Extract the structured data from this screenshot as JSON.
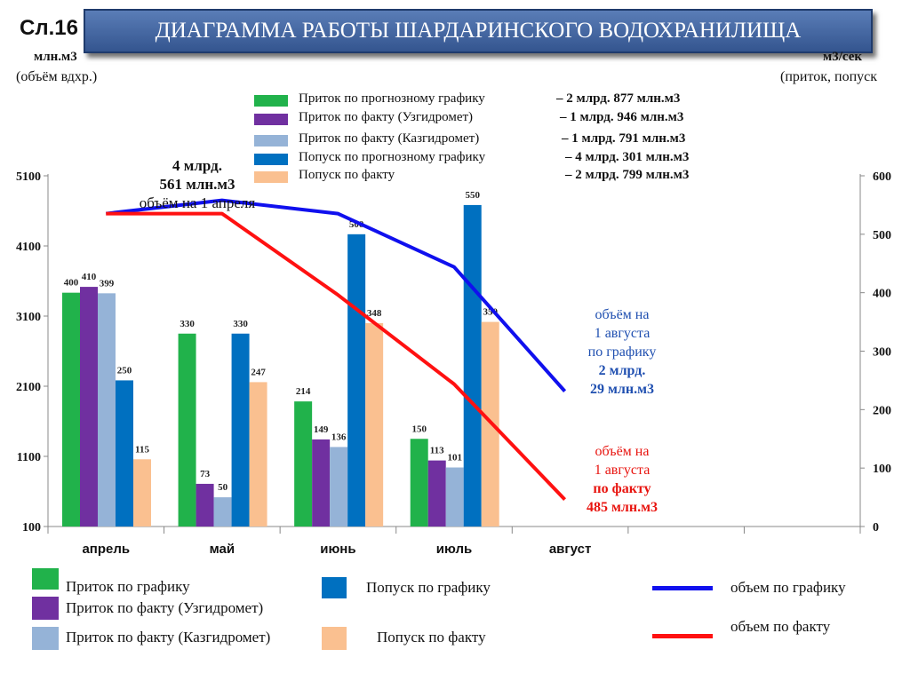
{
  "slide_number": "Сл.16",
  "title": "ДИАГРАММА  РАБОТЫ  ШАРДАРИНСКОГО  ВОДОХРАНИЛИЩА",
  "left_axis_unit": "млн.м3",
  "left_axis_caption": "(объём вдхр.)",
  "right_axis_unit": "м3/сек",
  "right_axis_caption": "(приток, попуск",
  "top_legend": [
    {
      "label": "Приток по прогнозному графику",
      "value": "–  2 млрд.  877 млн.м3",
      "color": "#21b24b"
    },
    {
      "label": "Приток по факту  (Узгидромет)",
      "value": "–  1 млрд. 946 млн.м3",
      "color": "#7030a0"
    },
    {
      "label": "Приток по факту  (Казгидромет)",
      "value": "–  1 млрд. 791 млн.м3",
      "color": "#95b3d7"
    },
    {
      "label": "Попуск по прогнозному  графику",
      "value": "–  4 млрд.  301 млн.м3",
      "color": "#0070c0"
    },
    {
      "label": "Попуск по факту",
      "value": "–  2 млрд.  799 млн.м3",
      "color": "#fac090"
    }
  ],
  "annotations": {
    "april_volume": {
      "line1": "4 млрд.",
      "line2": "561 млн.м3",
      "line3": "объём на 1 апреля"
    },
    "plan_volume": {
      "line1": "объём на",
      "line2": "1 августа",
      "line3": "по графику",
      "line4": "2 млрд.",
      "line5": "29 млн.м3"
    },
    "fact_volume": {
      "line1": "объём на",
      "line2": "1 августа",
      "line3": "по факту",
      "line4": "485 млн.м3"
    }
  },
  "bottom_legend": {
    "inflow_plan": "Приток по графику",
    "inflow_uz": "Приток по факту (Узгидромет)",
    "inflow_kz": "Приток по факту (Казгидромет)",
    "release_plan": "Попуск по графику",
    "release_fact": "Попуск по факту",
    "volume_plan": "объем по графику",
    "volume_fact": "объем по факту"
  },
  "chart_data": {
    "type": "bar",
    "categories": [
      "апрель",
      "май",
      "июнь",
      "июль",
      "август"
    ],
    "y_left": {
      "ticks": [
        "100",
        "1100",
        "2100",
        "3100",
        "4100",
        "5100"
      ],
      "range": [
        100,
        5100
      ],
      "unit": "млн.м3"
    },
    "y_right": {
      "ticks": [
        "0",
        "100",
        "200",
        "300",
        "400",
        "500",
        "600"
      ],
      "range": [
        0,
        600
      ],
      "unit": "м3/сек"
    },
    "series": [
      {
        "name": "Приток по графику",
        "axis": "right",
        "color": "#21b24b",
        "values": [
          400,
          330,
          214,
          150,
          null
        ],
        "labels": [
          "400",
          "330",
          "214",
          "150",
          ""
        ]
      },
      {
        "name": "Приток по факту (Узгидромет)",
        "axis": "right",
        "color": "#7030a0",
        "values": [
          410,
          73,
          149,
          113,
          null
        ],
        "labels": [
          "410",
          "73",
          "149",
          "113",
          ""
        ]
      },
      {
        "name": "Приток по факту (Казгидромет)",
        "axis": "right",
        "color": "#95b3d7",
        "values": [
          399,
          50,
          136,
          101,
          null
        ],
        "labels": [
          "399",
          "50",
          "136",
          "101",
          ""
        ]
      },
      {
        "name": "Попуск по графику",
        "axis": "right",
        "color": "#0070c0",
        "values": [
          250,
          330,
          500,
          550,
          null
        ],
        "labels": [
          "250",
          "330",
          "500",
          "550",
          ""
        ]
      },
      {
        "name": "Попуск по факту",
        "axis": "right",
        "color": "#fac090",
        "values": [
          115,
          247,
          348,
          350,
          null
        ],
        "labels": [
          "115",
          "247",
          "348",
          "350",
          ""
        ]
      }
    ],
    "lines": [
      {
        "name": "объем по графику",
        "axis": "left",
        "color": "#1010ee",
        "values": [
          4561,
          4750,
          4560,
          3800,
          2029
        ]
      },
      {
        "name": "объем по факту",
        "axis": "left",
        "color": "#ff1111",
        "values": [
          4561,
          4561,
          3400,
          2130,
          485
        ]
      }
    ]
  }
}
